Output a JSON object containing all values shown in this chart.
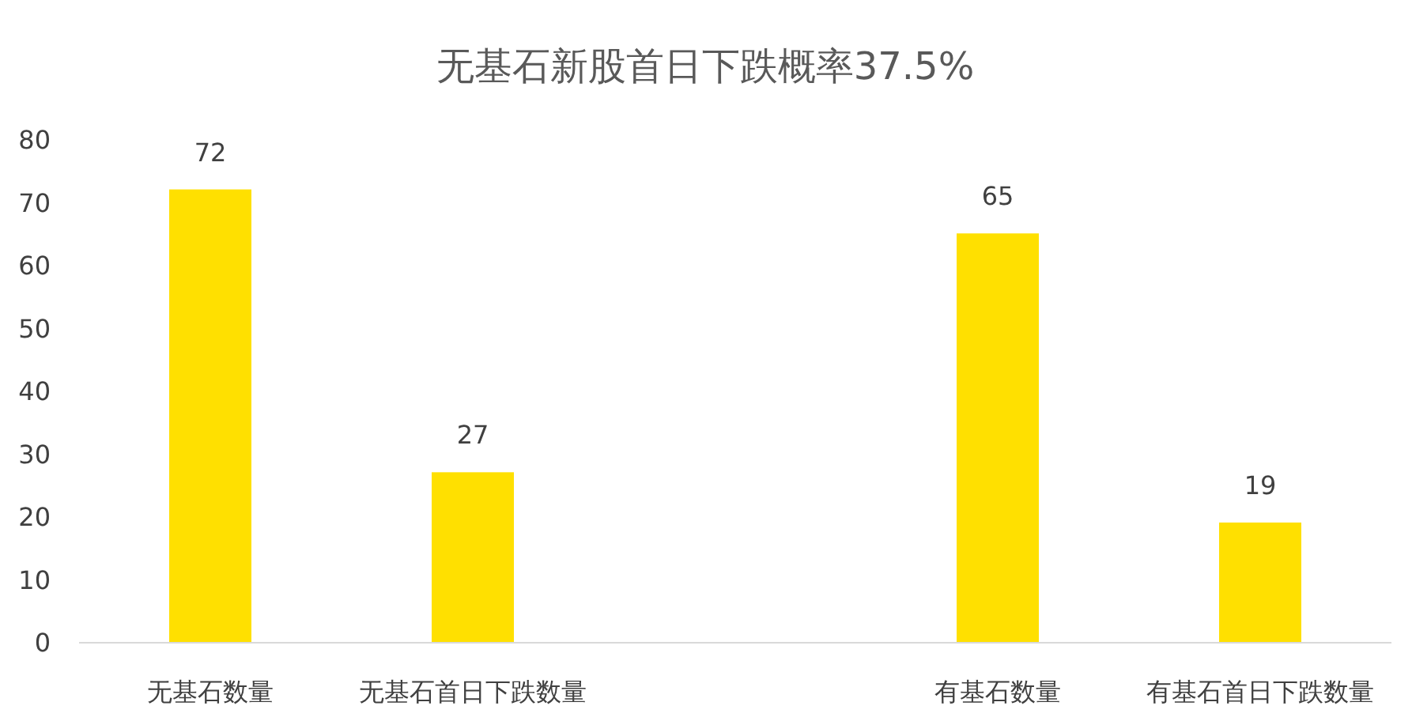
{
  "chart_data": {
    "type": "bar",
    "title": "无基石新股首日下跌概率37.5%",
    "categories": [
      "无基石数量",
      "无基石首日下跌数量",
      null,
      "有基石数量",
      "有基石首日下跌数量"
    ],
    "values": [
      72,
      27,
      null,
      65,
      19
    ],
    "color": "#ffe000",
    "ylim": [
      0,
      80
    ],
    "yticks": [
      0,
      10,
      20,
      30,
      40,
      50,
      60,
      70,
      80
    ],
    "data_labels": true
  }
}
